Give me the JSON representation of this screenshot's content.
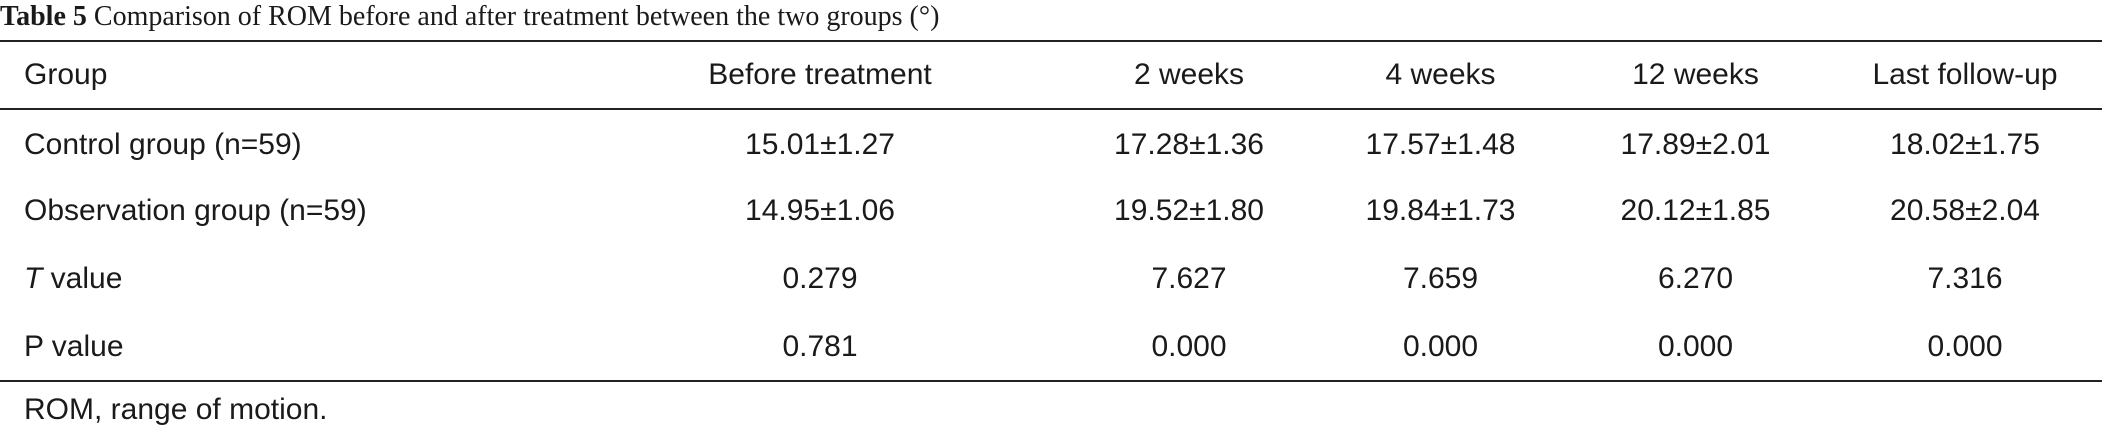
{
  "caption": {
    "label": "Table 5",
    "text": "Comparison of ROM before and after treatment between the two groups (°)"
  },
  "table": {
    "headers": [
      "Group",
      "Before treatment",
      "2 weeks",
      "4 weeks",
      "12 weeks",
      "Last follow-up"
    ],
    "rows": [
      {
        "label": "Control group (n=59)",
        "values": [
          "15.01±1.27",
          "17.28±1.36",
          "17.57±1.48",
          "17.89±2.01",
          "18.02±1.75"
        ]
      },
      {
        "label": "Observation group (n=59)",
        "values": [
          "14.95±1.06",
          "19.52±1.80",
          "19.84±1.73",
          "20.12±1.85",
          "20.58±2.04"
        ]
      },
      {
        "label_italic": "T",
        "label_rest": " value",
        "values": [
          "0.279",
          "7.627",
          "7.659",
          "6.270",
          "7.316"
        ]
      },
      {
        "label": "P value",
        "values": [
          "0.781",
          "0.000",
          "0.000",
          "0.000",
          "0.000"
        ]
      }
    ]
  },
  "footnote": "ROM, range of motion."
}
